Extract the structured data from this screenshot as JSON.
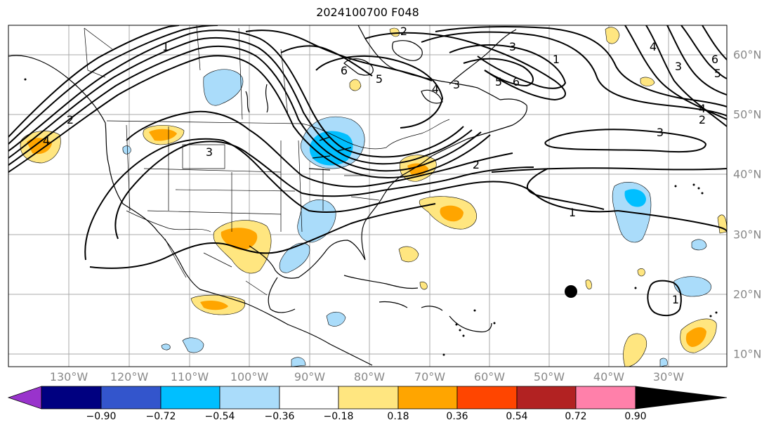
{
  "title": "2024100700 F048",
  "longitude_labels": [
    "130°W",
    "120°W",
    "110°W",
    "100°W",
    "90°W",
    "80°W",
    "70°W",
    "60°W",
    "50°W",
    "40°W",
    "30°W"
  ],
  "latitude_labels": [
    "60°N",
    "50°N",
    "40°N",
    "30°N",
    "20°N",
    "10°N"
  ],
  "colorbar": {
    "ticks": [
      "−0.90",
      "−0.72",
      "−0.54",
      "−0.36",
      "−0.18",
      "0.18",
      "0.36",
      "0.54",
      "0.72",
      "0.90"
    ],
    "colors": [
      "#9933cc",
      "#000080",
      "#3355cc",
      "#00bfff",
      "#aadcfa",
      "#ffffff",
      "#ffe680",
      "#ffa500",
      "#ff4500",
      "#b22222",
      "#ff80aa"
    ]
  },
  "contour_labels": [
    "6",
    "5",
    "4",
    "4",
    "3",
    "2",
    "2",
    "1",
    "1",
    "3",
    "6",
    "5",
    "4",
    "3",
    "3",
    "2",
    "1",
    "6",
    "5",
    "4",
    "3",
    "2",
    "1"
  ],
  "marker": {
    "type": "black-dot"
  }
}
